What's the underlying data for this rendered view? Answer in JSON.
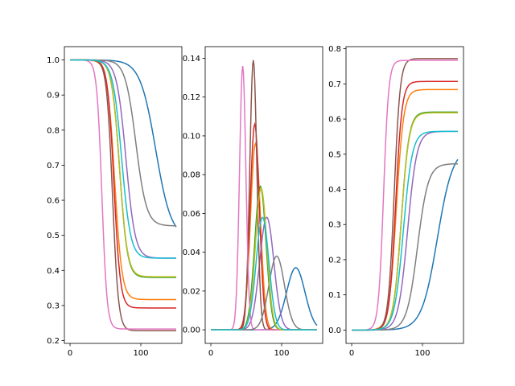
{
  "chart_data": [
    {
      "type": "line",
      "title": "",
      "xlabel": "",
      "ylabel": "",
      "xlim": [
        -8,
        158
      ],
      "ylim": [
        0.192,
        1.038
      ],
      "xticks": [
        0,
        100
      ],
      "yticks": [
        0.2,
        0.3,
        0.4,
        0.5,
        0.6,
        0.7,
        0.8,
        0.9,
        1.0
      ],
      "ytick_labels": [
        "0.2",
        "0.3",
        "0.4",
        "0.5",
        "0.6",
        "0.7",
        "0.8",
        "0.9",
        "1.0"
      ],
      "grid": false,
      "curve": "logistic_decay",
      "series": [
        {
          "color": "#1f77b4",
          "midpoint": 121,
          "width": 11,
          "start": 1.0,
          "end": 0.49
        },
        {
          "color": "#ff7f0e",
          "midpoint": 63,
          "width": 5.2,
          "start": 1.0,
          "end": 0.317
        },
        {
          "color": "#2ca02c",
          "midpoint": 70,
          "width": 5.5,
          "start": 1.0,
          "end": 0.38
        },
        {
          "color": "#d62728",
          "midpoint": 62,
          "width": 4.5,
          "start": 1.0,
          "end": 0.293
        },
        {
          "color": "#9467bd",
          "midpoint": 79,
          "width": 6.5,
          "start": 1.0,
          "end": 0.435
        },
        {
          "color": "#8c564b",
          "midpoint": 60,
          "width": 4.2,
          "start": 1.0,
          "end": 0.228
        },
        {
          "color": "#e377c2",
          "midpoint": 45,
          "width": 3.6,
          "start": 1.0,
          "end": 0.233
        },
        {
          "color": "#7f7f7f",
          "midpoint": 93,
          "width": 7.5,
          "start": 1.0,
          "end": 0.527
        },
        {
          "color": "#bcbd22",
          "midpoint": 70,
          "width": 5.6,
          "start": 1.0,
          "end": 0.382
        },
        {
          "color": "#17becf",
          "midpoint": 73,
          "width": 6.3,
          "start": 1.0,
          "end": 0.435
        }
      ]
    },
    {
      "type": "line",
      "title": "",
      "xlabel": "",
      "ylabel": "",
      "xlim": [
        -8,
        158
      ],
      "ylim": [
        -0.007,
        0.146
      ],
      "xticks": [
        0,
        100
      ],
      "yticks": [
        0.0,
        0.02,
        0.04,
        0.06,
        0.08,
        0.1,
        0.12,
        0.14
      ],
      "ytick_labels": [
        "0.00",
        "0.02",
        "0.04",
        "0.06",
        "0.08",
        "0.10",
        "0.12",
        "0.14"
      ],
      "grid": false,
      "curve": "gaussian_peak",
      "series": [
        {
          "color": "#1f77b4",
          "center": 120,
          "sigma": 13,
          "peak": 0.032
        },
        {
          "color": "#ff7f0e",
          "center": 63,
          "sigma": 7,
          "peak": 0.096
        },
        {
          "color": "#2ca02c",
          "center": 70,
          "sigma": 8,
          "peak": 0.074
        },
        {
          "color": "#d62728",
          "center": 62,
          "sigma": 6.5,
          "peak": 0.106
        },
        {
          "color": "#9467bd",
          "center": 79,
          "sigma": 10,
          "peak": 0.058
        },
        {
          "color": "#8c564b",
          "center": 60,
          "sigma": 5,
          "peak": 0.139
        },
        {
          "color": "#e377c2",
          "center": 45,
          "sigma": 4.5,
          "peak": 0.136
        },
        {
          "color": "#7f7f7f",
          "center": 93,
          "sigma": 11,
          "peak": 0.038
        },
        {
          "color": "#bcbd22",
          "center": 71,
          "sigma": 8,
          "peak": 0.073
        },
        {
          "color": "#17becf",
          "center": 73,
          "sigma": 9,
          "peak": 0.058
        }
      ]
    },
    {
      "type": "line",
      "title": "",
      "xlabel": "",
      "ylabel": "",
      "xlim": [
        -8,
        158
      ],
      "ylim": [
        -0.038,
        0.806
      ],
      "xticks": [
        0,
        100
      ],
      "yticks": [
        0.0,
        0.1,
        0.2,
        0.3,
        0.4,
        0.5,
        0.6,
        0.7,
        0.8
      ],
      "ytick_labels": [
        "0.0",
        "0.1",
        "0.2",
        "0.3",
        "0.4",
        "0.5",
        "0.6",
        "0.7",
        "0.8"
      ],
      "grid": false,
      "curve": "logistic_growth",
      "series": [
        {
          "color": "#1f77b4",
          "midpoint": 121,
          "width": 11,
          "start": 0.0,
          "end": 0.52
        },
        {
          "color": "#ff7f0e",
          "midpoint": 63,
          "width": 5.2,
          "start": 0.0,
          "end": 0.684
        },
        {
          "color": "#2ca02c",
          "midpoint": 70,
          "width": 5.5,
          "start": 0.0,
          "end": 0.62
        },
        {
          "color": "#d62728",
          "midpoint": 62,
          "width": 4.5,
          "start": 0.0,
          "end": 0.707
        },
        {
          "color": "#9467bd",
          "midpoint": 79,
          "width": 6.5,
          "start": 0.0,
          "end": 0.565
        },
        {
          "color": "#8c564b",
          "midpoint": 60,
          "width": 4.2,
          "start": 0.0,
          "end": 0.772
        },
        {
          "color": "#e377c2",
          "midpoint": 45,
          "width": 3.6,
          "start": 0.0,
          "end": 0.767
        },
        {
          "color": "#7f7f7f",
          "midpoint": 93,
          "width": 7.5,
          "start": 0.0,
          "end": 0.473
        },
        {
          "color": "#bcbd22",
          "midpoint": 70,
          "width": 5.6,
          "start": 0.0,
          "end": 0.618
        },
        {
          "color": "#17becf",
          "midpoint": 73,
          "width": 6.3,
          "start": 0.0,
          "end": 0.565
        }
      ]
    }
  ]
}
